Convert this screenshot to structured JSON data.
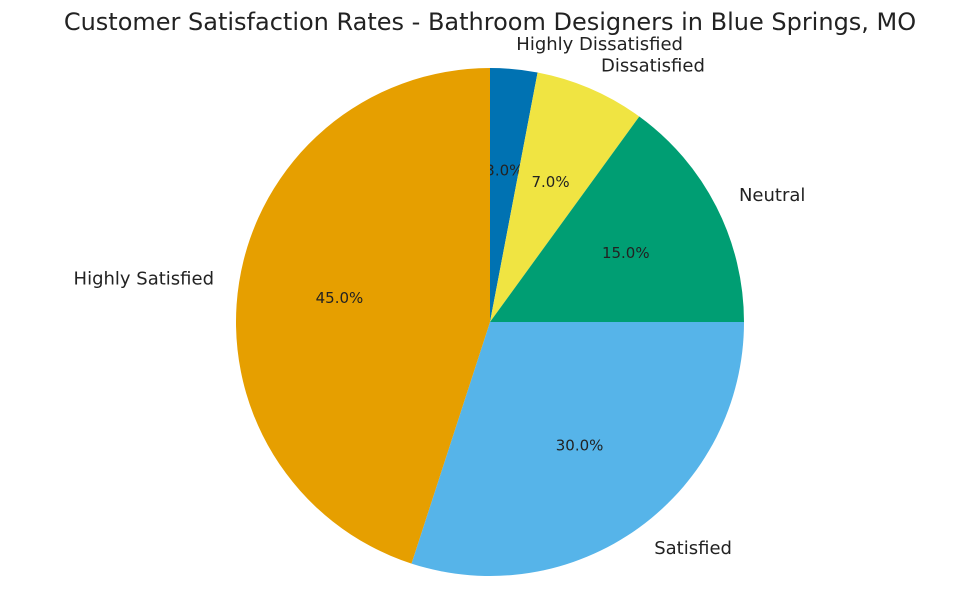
{
  "chart_data": {
    "type": "pie",
    "title": "Customer Satisfaction Rates - Bathroom Designers in Blue Springs, MO",
    "categories": [
      "Highly Dissatisfied",
      "Dissatisfied",
      "Neutral",
      "Satisfied",
      "Highly Satisfied"
    ],
    "values": [
      3.0,
      7.0,
      15.0,
      30.0,
      45.0
    ],
    "percent_labels": [
      "3.0%",
      "7.0%",
      "15.0%",
      "30.0%",
      "45.0%"
    ],
    "colors": [
      "#0072b2",
      "#f0e442",
      "#009e73",
      "#56b4e9",
      "#e69f00"
    ],
    "start_angle_deg": 90,
    "direction": "clockwise",
    "legend": "none"
  }
}
